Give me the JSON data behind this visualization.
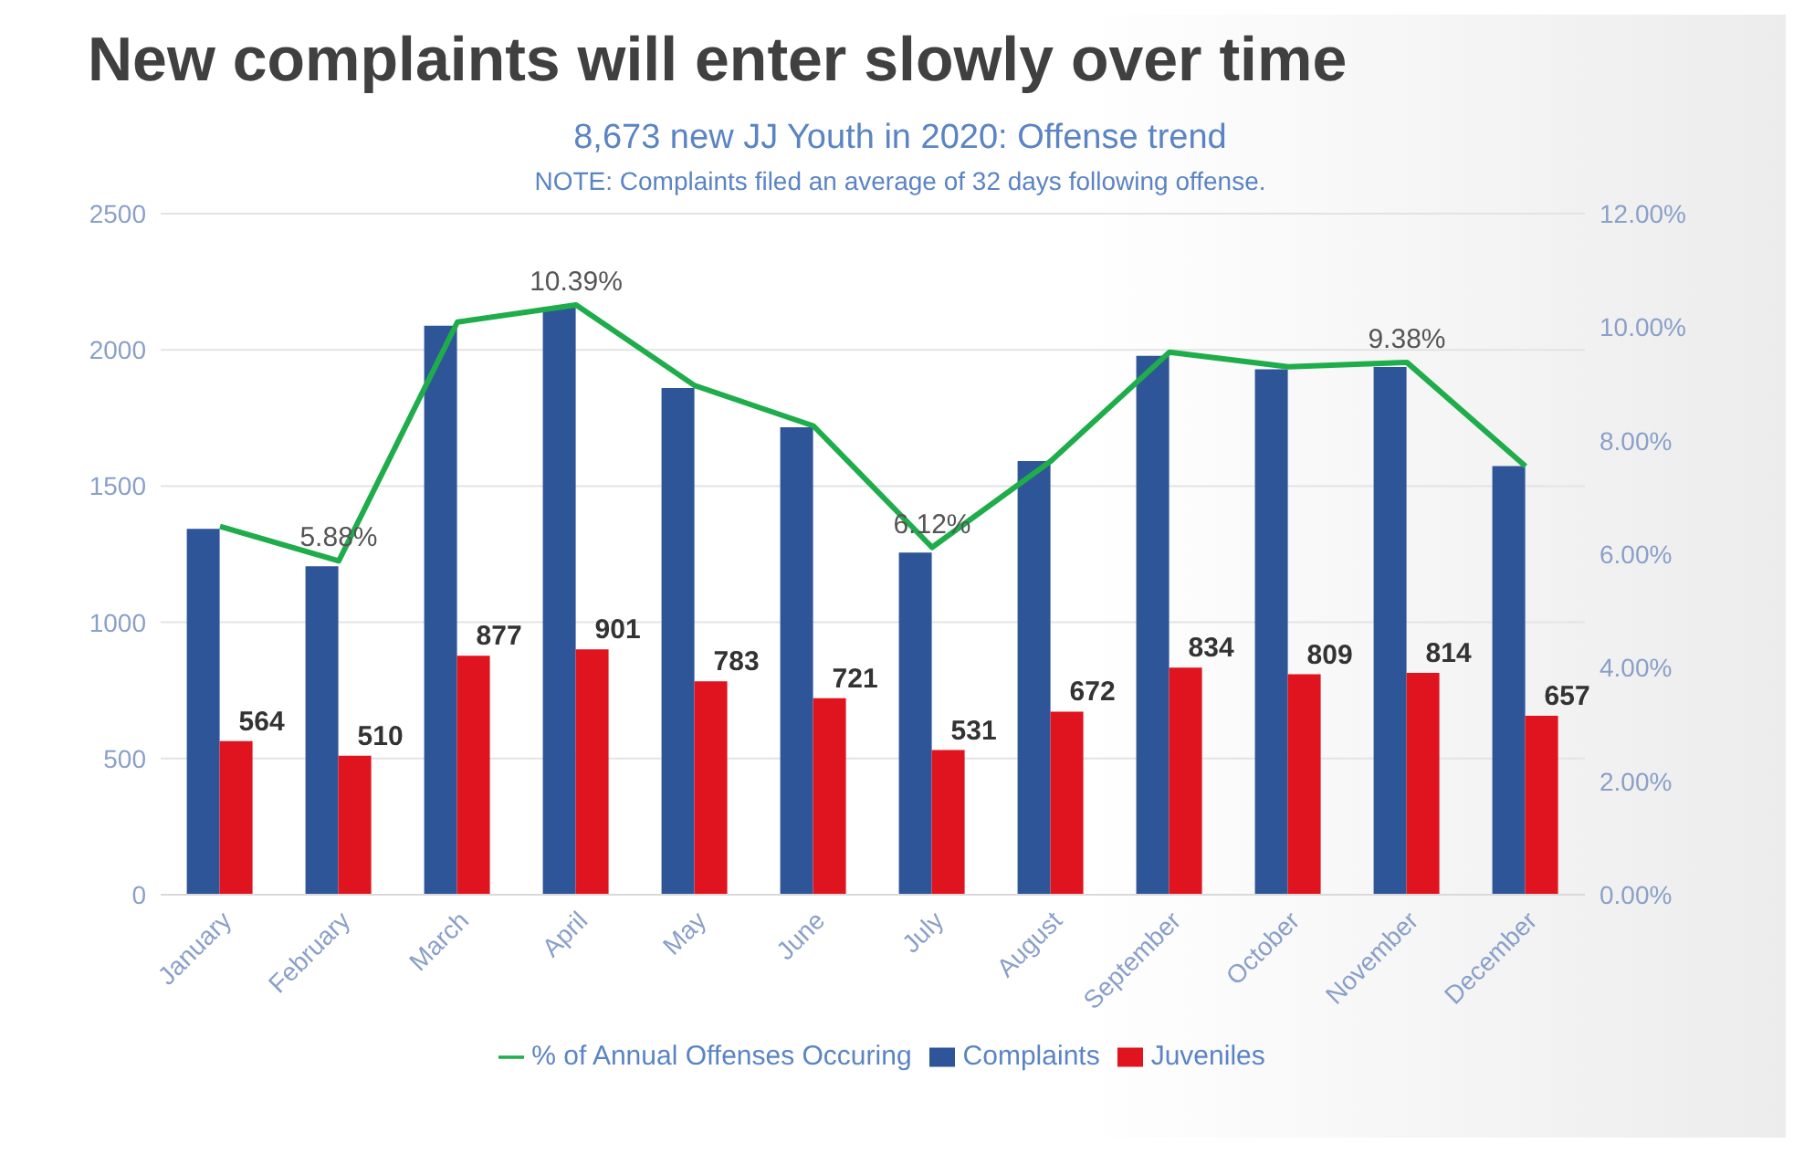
{
  "chart_data": {
    "type": "bar",
    "title": "New complaints will enter slowly over time",
    "subtitle": "8,673 new JJ Youth in 2020: Offense trend",
    "annotations": [
      "NOTE: Complaints filed an average of 32 days following offense."
    ],
    "categories": [
      "January",
      "February",
      "March",
      "April",
      "May",
      "June",
      "July",
      "August",
      "September",
      "October",
      "November",
      "December"
    ],
    "series": [
      {
        "name": "Complaints",
        "color": "#2e5597",
        "values": [
          1343,
          1206,
          2089,
          2158,
          1860,
          1716,
          1256,
          1592,
          1978,
          1929,
          1937,
          1573
        ]
      },
      {
        "name": "Juveniles",
        "color": "#e0141e",
        "values": [
          564,
          510,
          877,
          901,
          783,
          721,
          531,
          672,
          834,
          809,
          814,
          657
        ],
        "value_labels": [
          "564",
          "510",
          "877",
          "901",
          "783",
          "721",
          "531",
          "672",
          "834",
          "809",
          "814",
          "657"
        ]
      },
      {
        "name": "% of Annual Offenses Occuring",
        "type": "line",
        "axis": "y2",
        "color": "#1fad4b",
        "values": [
          6.49,
          5.88,
          10.09,
          10.39,
          8.97,
          8.26,
          6.12,
          7.64,
          9.56,
          9.3,
          9.38,
          7.55
        ],
        "value_labels": [
          null,
          "5.88%",
          null,
          "10.39%",
          null,
          null,
          "6.12%",
          null,
          null,
          null,
          "9.38%",
          null
        ]
      }
    ],
    "ylim": [
      0,
      2500
    ],
    "yticks": [
      0,
      500,
      1000,
      1500,
      2000,
      2500
    ],
    "y2lim": [
      0,
      12
    ],
    "y2ticks": [
      {
        "value": 0,
        "label": "0.00%"
      },
      {
        "value": 2,
        "label": "2.00%"
      },
      {
        "value": 4,
        "label": "4.00%"
      },
      {
        "value": 6,
        "label": "6.00%"
      },
      {
        "value": 8,
        "label": "8.00%"
      },
      {
        "value": 10,
        "label": "10.00%"
      },
      {
        "value": 12,
        "label": "12.00%"
      }
    ],
    "grid": "y",
    "legend": "bottom",
    "marker": "none",
    "line_style": "solid"
  }
}
